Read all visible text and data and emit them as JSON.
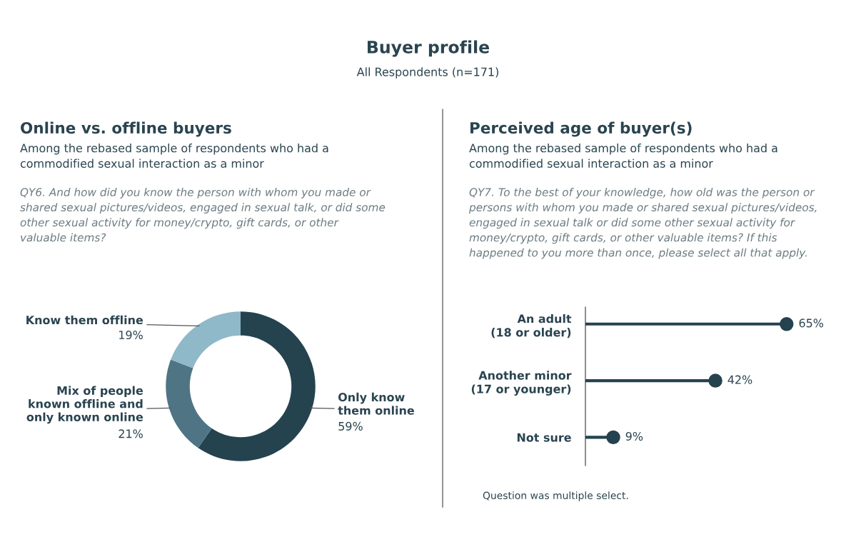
{
  "chart_data": [
    {
      "type": "other",
      "title": "Buyer profile",
      "subtitle": "All Respondents (n=171)"
    },
    {
      "type": "donut",
      "title": "Online vs. offline buyers",
      "subtitle": "Among the rebased sample of respondents who had a\ncommodified sexual interaction as a minor",
      "annotations": [
        "QY6. And how did you know the person with whom you made or\nshared sexual pictures/videos, engaged in sexual talk, or did some\nother sexual activity for money/crypto, gift cards, or other\nvaluable items?"
      ],
      "categories": [
        "Only know\nthem online",
        "Mix of people\nknown offline and\nonly known online",
        "Know them offline"
      ],
      "values": [
        59,
        21,
        19
      ],
      "value_labels": [
        "59%",
        "21%",
        "19%"
      ],
      "colors": [
        "#25424f",
        "#4f7585",
        "#8fb8c8"
      ]
    },
    {
      "type": "lollipop",
      "orientation": "horizontal",
      "title": "Perceived age of buyer(s)",
      "subtitle": "Among the rebased sample of respondents who had a\ncommodified sexual interaction as a minor",
      "annotations": [
        "QY7. To the best of your knowledge, how old was the person or\npersons with whom you made or shared sexual pictures/videos,\nengaged in sexual talk or did some other sexual activity for\nmoney/crypto, gift cards, or other valuable items? If this\nhappened to you more than once, please select all that apply.",
        "Question was multiple select."
      ],
      "categories": [
        "An adult\n(18 or older)",
        "Another minor\n(17 or younger)",
        "Not sure"
      ],
      "values": [
        65,
        42,
        9
      ],
      "value_labels": [
        "65%",
        "42%",
        "9%"
      ],
      "color": "#25424f",
      "tick_labels": "y",
      "marker": "circle"
    }
  ]
}
